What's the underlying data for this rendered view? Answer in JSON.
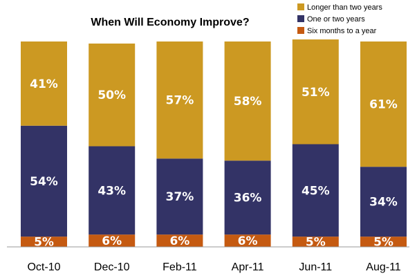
{
  "chart_data": {
    "type": "bar",
    "stacked": true,
    "title": "When Will Economy Improve?",
    "categories": [
      "Oct-10",
      "Dec-10",
      "Feb-11",
      "Apr-11",
      "Jun-11",
      "Aug-11"
    ],
    "series": [
      {
        "name": "Six months to a year",
        "values": [
          5,
          6,
          6,
          6,
          5,
          5
        ],
        "color": "#C55A11",
        "labels": [
          "5%",
          "6%",
          "6%",
          "6%",
          "5%",
          "5%"
        ]
      },
      {
        "name": "One or two years",
        "values": [
          54,
          43,
          37,
          36,
          45,
          34
        ],
        "color": "#333366",
        "labels": [
          "54%",
          "43%",
          "37%",
          "36%",
          "45%",
          "34%"
        ]
      },
      {
        "name": "Longer than two years",
        "values": [
          41,
          50,
          57,
          58,
          51,
          61
        ],
        "color": "#CC9922",
        "labels": [
          "41%",
          "50%",
          "57%",
          "58%",
          "51%",
          "61%"
        ]
      }
    ],
    "legend_order": [
      "Longer than two years",
      "One or two years",
      "Six months to a year"
    ],
    "legend_position": "top-right",
    "ylim": [
      0,
      100
    ],
    "grid": false,
    "xlabel": "",
    "ylabel": ""
  }
}
